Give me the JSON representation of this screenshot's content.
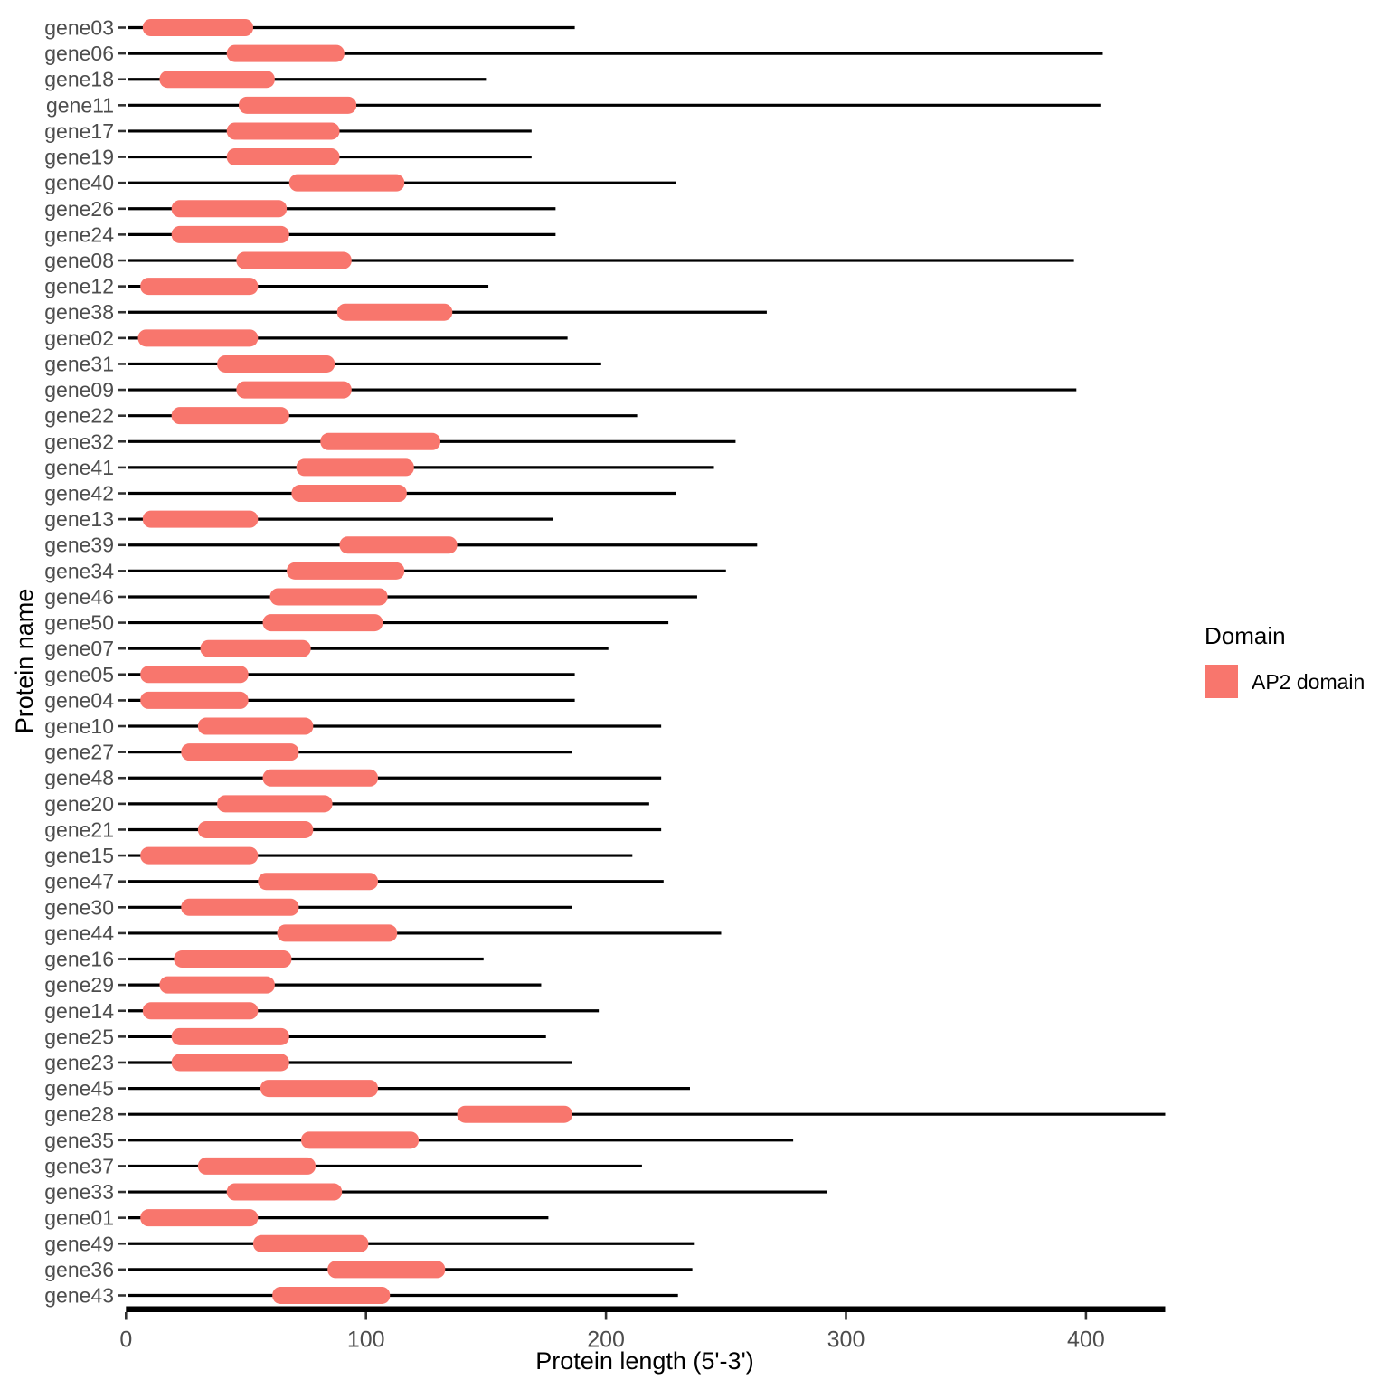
{
  "chart_data": {
    "type": "bar",
    "subtype": "gene-structure-domain-plot",
    "orientation": "horizontal",
    "title": "",
    "xlabel": "Protein length (5'-3')",
    "ylabel": "Protein name",
    "xlim": [
      0,
      433
    ],
    "x_ticks": [
      0,
      100,
      200,
      300,
      400
    ],
    "grid": false,
    "line_color": "#000000",
    "domain_color": "#F8766D",
    "tick_label_color": "#4D4D4D",
    "axis_title_color": "#000000",
    "legend": {
      "title": "Domain",
      "position": "right",
      "entries": [
        {
          "label": "AP2 domain",
          "color": "#F8766D"
        }
      ]
    },
    "genes": [
      {
        "name": "gene03",
        "length": 187,
        "domain_start": 7,
        "domain_end": 53
      },
      {
        "name": "gene06",
        "length": 407,
        "domain_start": 42,
        "domain_end": 91
      },
      {
        "name": "gene18",
        "length": 150,
        "domain_start": 14,
        "domain_end": 62
      },
      {
        "name": "gene11",
        "length": 406,
        "domain_start": 47,
        "domain_end": 96
      },
      {
        "name": "gene17",
        "length": 169,
        "domain_start": 42,
        "domain_end": 89
      },
      {
        "name": "gene19",
        "length": 169,
        "domain_start": 42,
        "domain_end": 89
      },
      {
        "name": "gene40",
        "length": 229,
        "domain_start": 68,
        "domain_end": 116
      },
      {
        "name": "gene26",
        "length": 179,
        "domain_start": 19,
        "domain_end": 67
      },
      {
        "name": "gene24",
        "length": 179,
        "domain_start": 19,
        "domain_end": 68
      },
      {
        "name": "gene08",
        "length": 395,
        "domain_start": 46,
        "domain_end": 94
      },
      {
        "name": "gene12",
        "length": 151,
        "domain_start": 6,
        "domain_end": 55
      },
      {
        "name": "gene38",
        "length": 267,
        "domain_start": 88,
        "domain_end": 136
      },
      {
        "name": "gene02",
        "length": 184,
        "domain_start": 5,
        "domain_end": 55
      },
      {
        "name": "gene31",
        "length": 198,
        "domain_start": 38,
        "domain_end": 87
      },
      {
        "name": "gene09",
        "length": 396,
        "domain_start": 46,
        "domain_end": 94
      },
      {
        "name": "gene22",
        "length": 213,
        "domain_start": 19,
        "domain_end": 68
      },
      {
        "name": "gene32",
        "length": 254,
        "domain_start": 81,
        "domain_end": 131
      },
      {
        "name": "gene41",
        "length": 245,
        "domain_start": 71,
        "domain_end": 120
      },
      {
        "name": "gene42",
        "length": 229,
        "domain_start": 69,
        "domain_end": 117
      },
      {
        "name": "gene13",
        "length": 178,
        "domain_start": 7,
        "domain_end": 55
      },
      {
        "name": "gene39",
        "length": 263,
        "domain_start": 89,
        "domain_end": 138
      },
      {
        "name": "gene34",
        "length": 250,
        "domain_start": 67,
        "domain_end": 116
      },
      {
        "name": "gene46",
        "length": 238,
        "domain_start": 60,
        "domain_end": 109
      },
      {
        "name": "gene50",
        "length": 226,
        "domain_start": 57,
        "domain_end": 107
      },
      {
        "name": "gene07",
        "length": 201,
        "domain_start": 31,
        "domain_end": 77
      },
      {
        "name": "gene05",
        "length": 187,
        "domain_start": 6,
        "domain_end": 51
      },
      {
        "name": "gene04",
        "length": 187,
        "domain_start": 6,
        "domain_end": 51
      },
      {
        "name": "gene10",
        "length": 223,
        "domain_start": 30,
        "domain_end": 78
      },
      {
        "name": "gene27",
        "length": 186,
        "domain_start": 23,
        "domain_end": 72
      },
      {
        "name": "gene48",
        "length": 223,
        "domain_start": 57,
        "domain_end": 105
      },
      {
        "name": "gene20",
        "length": 218,
        "domain_start": 38,
        "domain_end": 86
      },
      {
        "name": "gene21",
        "length": 223,
        "domain_start": 30,
        "domain_end": 78
      },
      {
        "name": "gene15",
        "length": 211,
        "domain_start": 6,
        "domain_end": 55
      },
      {
        "name": "gene47",
        "length": 224,
        "domain_start": 55,
        "domain_end": 105
      },
      {
        "name": "gene30",
        "length": 186,
        "domain_start": 23,
        "domain_end": 72
      },
      {
        "name": "gene44",
        "length": 248,
        "domain_start": 63,
        "domain_end": 113
      },
      {
        "name": "gene16",
        "length": 149,
        "domain_start": 20,
        "domain_end": 69
      },
      {
        "name": "gene29",
        "length": 173,
        "domain_start": 14,
        "domain_end": 62
      },
      {
        "name": "gene14",
        "length": 197,
        "domain_start": 7,
        "domain_end": 55
      },
      {
        "name": "gene25",
        "length": 175,
        "domain_start": 19,
        "domain_end": 68
      },
      {
        "name": "gene23",
        "length": 186,
        "domain_start": 19,
        "domain_end": 68
      },
      {
        "name": "gene45",
        "length": 235,
        "domain_start": 56,
        "domain_end": 105
      },
      {
        "name": "gene28",
        "length": 433,
        "domain_start": 138,
        "domain_end": 186
      },
      {
        "name": "gene35",
        "length": 278,
        "domain_start": 73,
        "domain_end": 122
      },
      {
        "name": "gene37",
        "length": 215,
        "domain_start": 30,
        "domain_end": 79
      },
      {
        "name": "gene33",
        "length": 292,
        "domain_start": 42,
        "domain_end": 90
      },
      {
        "name": "gene01",
        "length": 176,
        "domain_start": 6,
        "domain_end": 55
      },
      {
        "name": "gene49",
        "length": 237,
        "domain_start": 53,
        "domain_end": 101
      },
      {
        "name": "gene36",
        "length": 236,
        "domain_start": 84,
        "domain_end": 133
      },
      {
        "name": "gene43",
        "length": 230,
        "domain_start": 61,
        "domain_end": 110
      }
    ]
  }
}
